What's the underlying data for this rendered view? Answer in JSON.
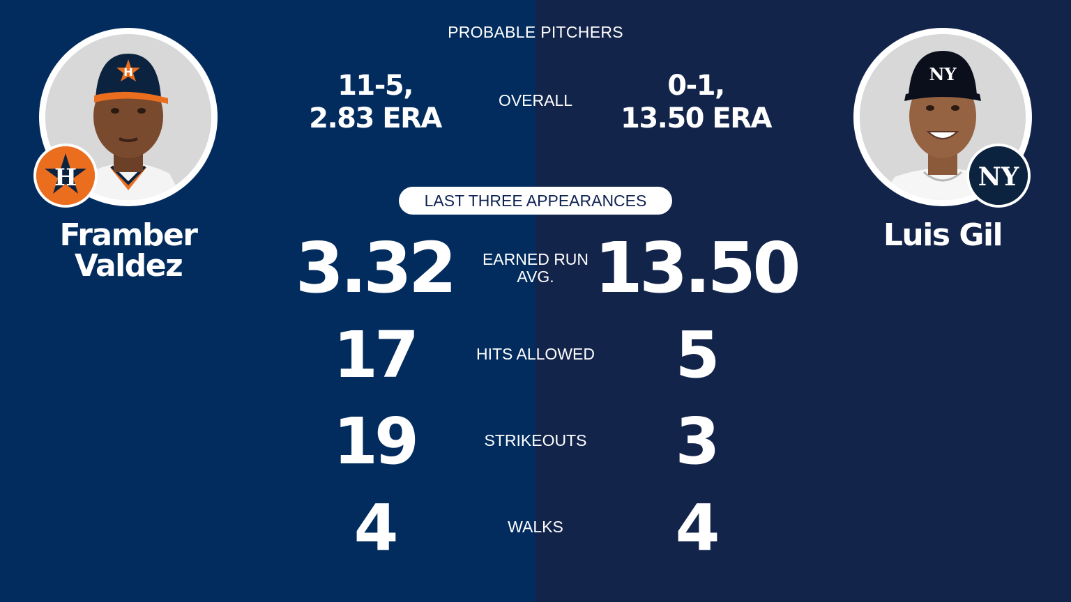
{
  "colors": {
    "left_bg": "#022c5e",
    "right_bg": "#13244b",
    "text": "#ffffff",
    "pill_text": "#0d2150",
    "astros_orange": "#eb6e1f",
    "yankees_navy": "#0c2340"
  },
  "header": {
    "title": "PROBABLE PITCHERS"
  },
  "overall": {
    "label": "OVERALL",
    "left": {
      "record": "11-5,",
      "era": "2.83 ERA"
    },
    "right": {
      "record": "0-1,",
      "era": "13.50 ERA"
    }
  },
  "section": {
    "title": "LAST THREE APPEARANCES"
  },
  "players": {
    "left": {
      "name_line1": "Framber",
      "name_line2": "Valdez",
      "team_logo": "astros-logo",
      "photo": "player-headshot"
    },
    "right": {
      "name_line1": "Luis Gil",
      "team_logo": "yankees-logo",
      "photo": "player-headshot"
    }
  },
  "stats": [
    {
      "label_line1": "EARNED RUN",
      "label_line2": "AVG.",
      "left": "3.32",
      "right": "13.50"
    },
    {
      "label_line1": "HITS ALLOWED",
      "left": "17",
      "right": "5"
    },
    {
      "label_line1": "STRIKEOUTS",
      "left": "19",
      "right": "3"
    },
    {
      "label_line1": "WALKS",
      "left": "4",
      "right": "4"
    }
  ]
}
